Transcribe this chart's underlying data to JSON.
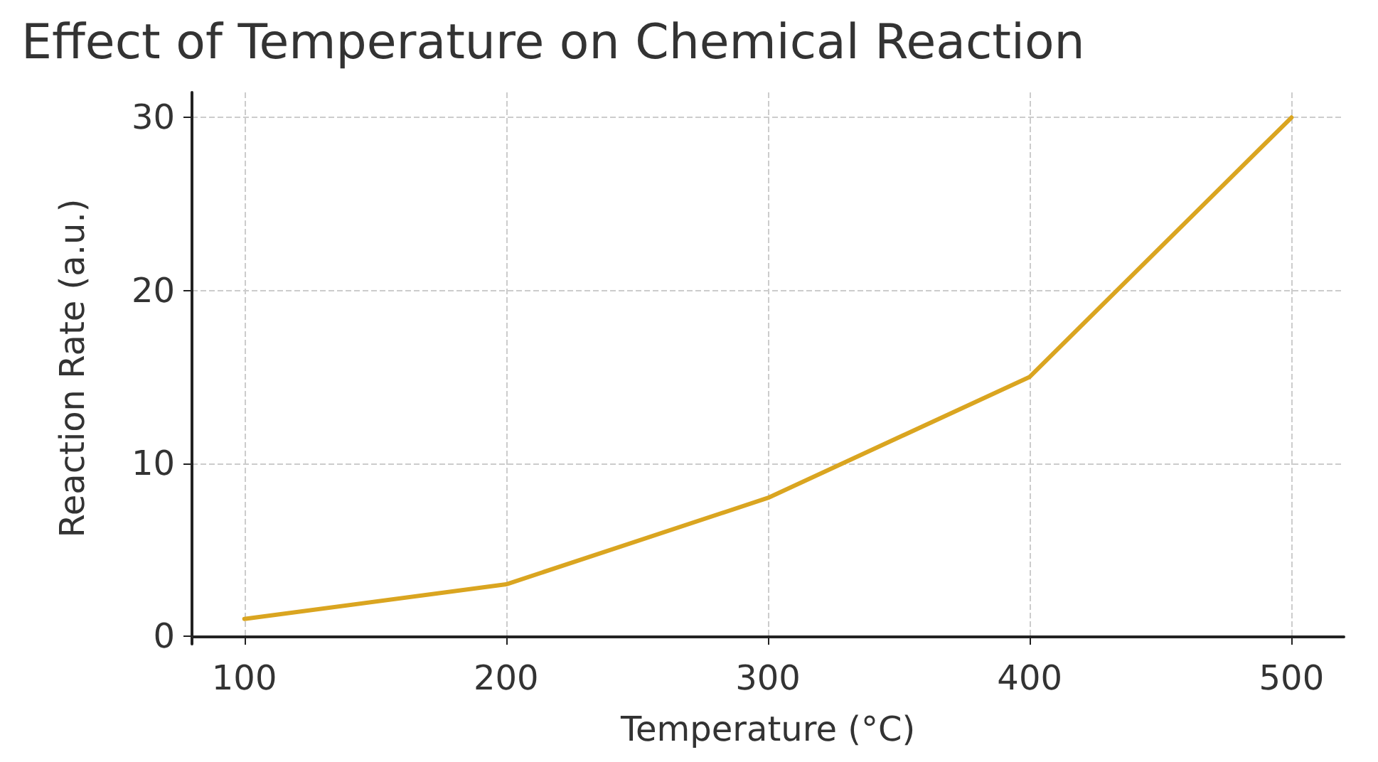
{
  "chart_data": {
    "type": "line",
    "title": "Effect of Temperature on Chemical Reaction",
    "xlabel": "Temperature (°C)",
    "ylabel": "Reaction Rate (a.u.)",
    "x": [
      100,
      200,
      300,
      400,
      500
    ],
    "series": [
      {
        "color": "#daa520",
        "values": [
          1,
          3,
          8,
          15,
          30
        ]
      }
    ],
    "xlim": [
      80,
      520
    ],
    "xticks": [
      100,
      200,
      300,
      400,
      500
    ],
    "ylim": [
      -0.45,
      31.45
    ],
    "yticks": [
      0,
      10,
      20,
      30
    ],
    "grid": true,
    "marker": "none",
    "line_style": "solid"
  }
}
